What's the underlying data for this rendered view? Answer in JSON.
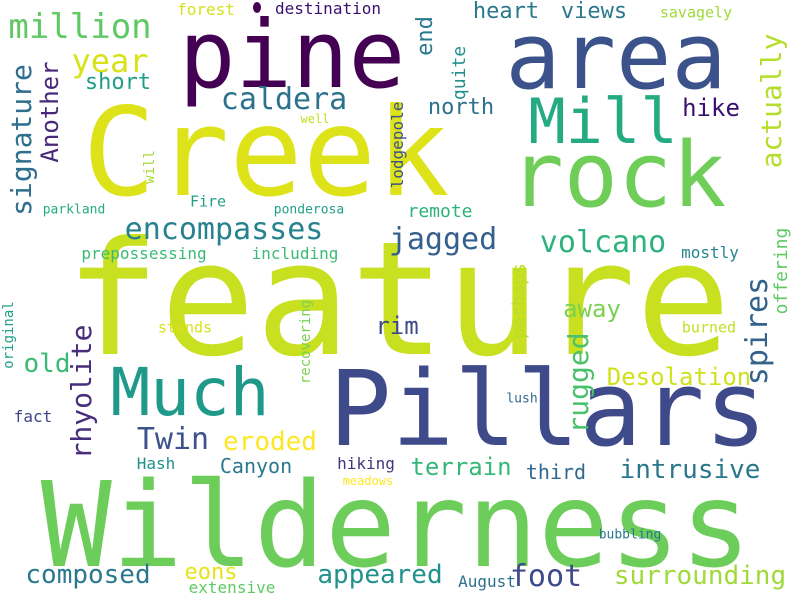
{
  "words": [
    {
      "id": "feature",
      "text": "feature",
      "color": "#c8e020"
    },
    {
      "id": "wilderness",
      "text": "Wilderness",
      "color": "#6ccd5a"
    },
    {
      "id": "creek",
      "text": "Creek",
      "color": "#dde318"
    },
    {
      "id": "pillars",
      "text": "Pillars",
      "color": "#3e4a89"
    },
    {
      "id": "rock",
      "text": "rock",
      "color": "#6ece58"
    },
    {
      "id": "pine",
      "text": "pine",
      "color": "#440154"
    },
    {
      "id": "area",
      "text": "area",
      "color": "#3b528b"
    },
    {
      "id": "much",
      "text": "Much",
      "color": "#1f9a8a"
    },
    {
      "id": "mill",
      "text": "Mill",
      "color": "#25ab82"
    },
    {
      "id": "million",
      "text": "million",
      "color": "#5ec962"
    },
    {
      "id": "year",
      "text": "year",
      "color": "#d8e219"
    },
    {
      "id": "encompasses",
      "text": "encompasses",
      "color": "#26828e"
    },
    {
      "id": "caldera",
      "text": "caldera",
      "color": "#2c728e"
    },
    {
      "id": "jagged",
      "text": "jagged",
      "color": "#355f8d"
    },
    {
      "id": "volcano",
      "text": "volcano",
      "color": "#2db27d"
    },
    {
      "id": "signature",
      "text": "signature",
      "color": "#2e6e8e"
    },
    {
      "id": "another",
      "text": "Another",
      "color": "#482878"
    },
    {
      "id": "rhyolite",
      "text": "rhyolite",
      "color": "#472d7b"
    },
    {
      "id": "twin",
      "text": "Twin",
      "color": "#3b528b"
    },
    {
      "id": "spires",
      "text": "spires",
      "color": "#33638d"
    },
    {
      "id": "foot",
      "text": "foot",
      "color": "#3e4a89"
    },
    {
      "id": "actually",
      "text": "actually",
      "color": "#b5de2b"
    },
    {
      "id": "rugged",
      "text": "rugged",
      "color": "#4ac16d"
    },
    {
      "id": "composed",
      "text": "composed",
      "color": "#2a788e"
    },
    {
      "id": "appeared",
      "text": "appeared",
      "color": "#21918c"
    },
    {
      "id": "surrounding",
      "text": "surrounding",
      "color": "#9fda3a"
    },
    {
      "id": "intrusive",
      "text": "intrusive",
      "color": "#2a788e"
    },
    {
      "id": "eroded",
      "text": "eroded",
      "color": "#fde725"
    },
    {
      "id": "old",
      "text": "old",
      "color": "#3aba76"
    },
    {
      "id": "desolation",
      "text": "Desolation",
      "color": "#d0e11c"
    },
    {
      "id": "terrain",
      "text": "terrain",
      "color": "#35b779"
    },
    {
      "id": "rim",
      "text": "rim",
      "color": "#3e4989"
    },
    {
      "id": "away",
      "text": "away",
      "color": "#7ad151"
    },
    {
      "id": "short",
      "text": "short",
      "color": "#1f9e89"
    },
    {
      "id": "north",
      "text": "north",
      "color": "#2c728e"
    },
    {
      "id": "hike",
      "text": "hike",
      "color": "#3b0f70"
    },
    {
      "id": "heart",
      "text": "heart",
      "color": "#2a788e"
    },
    {
      "id": "views",
      "text": "views",
      "color": "#29788e"
    },
    {
      "id": "end",
      "text": "end",
      "color": "#2a788e"
    },
    {
      "id": "eons",
      "text": "eons",
      "color": "#e5e419"
    },
    {
      "id": "canyon",
      "text": "Canyon",
      "color": "#2a788e"
    },
    {
      "id": "third",
      "text": "third",
      "color": "#31688e"
    },
    {
      "id": "remote",
      "text": "remote",
      "color": "#2db27d"
    },
    {
      "id": "quite",
      "text": "quite",
      "color": "#21918c"
    },
    {
      "id": "perhaps",
      "text": "perhaps",
      "color": "#b8de29"
    },
    {
      "id": "offering",
      "text": "offering",
      "color": "#5ec962"
    },
    {
      "id": "prepossessing",
      "text": "prepossessing",
      "color": "#3aba76"
    },
    {
      "id": "including",
      "text": "including",
      "color": "#3aba76"
    },
    {
      "id": "mostly",
      "text": "mostly",
      "color": "#25858e"
    },
    {
      "id": "hiking",
      "text": "hiking",
      "color": "#46337e"
    },
    {
      "id": "hash",
      "text": "Hash",
      "color": "#21918c"
    },
    {
      "id": "august",
      "text": "August",
      "color": "#2d708e"
    },
    {
      "id": "extensive",
      "text": "extensive",
      "color": "#5ec962"
    },
    {
      "id": "savagely",
      "text": "savagely",
      "color": "#a0da39"
    },
    {
      "id": "forest",
      "text": "forest",
      "color": "#d2e21b"
    },
    {
      "id": "destination",
      "text": "destination",
      "color": "#3b0f70"
    },
    {
      "id": "fire",
      "text": "Fire",
      "color": "#1fa188"
    },
    {
      "id": "lodgepole",
      "text": "lodgepole",
      "color": "#3b528b"
    },
    {
      "id": "stands",
      "text": "stands",
      "color": "#d8e219"
    },
    {
      "id": "burned",
      "text": "burned",
      "color": "#c2df23"
    },
    {
      "id": "recovering",
      "text": "recovering",
      "color": "#7ad151"
    },
    {
      "id": "original",
      "text": "original",
      "color": "#1fa188"
    },
    {
      "id": "fact",
      "text": "fact",
      "color": "#414487"
    },
    {
      "id": "will",
      "text": "will",
      "color": "#a5db36"
    },
    {
      "id": "parkland",
      "text": "parkland",
      "color": "#25ab82"
    },
    {
      "id": "ponderosa",
      "text": "ponderosa",
      "color": "#1fa188"
    },
    {
      "id": "well",
      "text": "well",
      "color": "#c2df23"
    },
    {
      "id": "lush",
      "text": "lush",
      "color": "#31688e"
    },
    {
      "id": "meadows",
      "text": "meadows",
      "color": "#fde725"
    },
    {
      "id": "bubbling",
      "text": "bubbling",
      "color": "#2a788e"
    }
  ]
}
